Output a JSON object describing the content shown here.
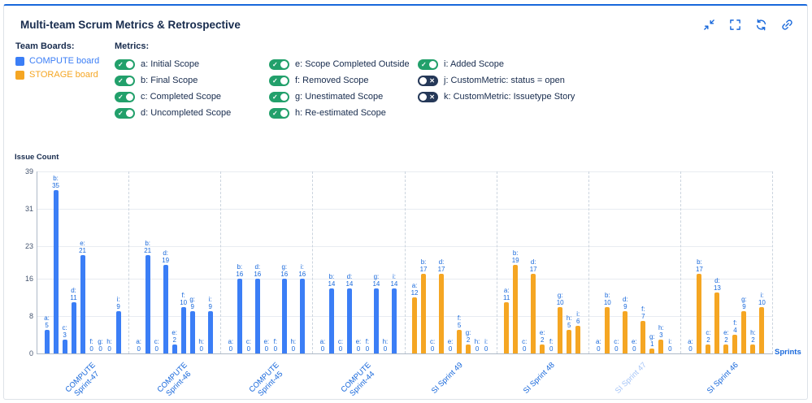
{
  "header": {
    "title": "Multi-team Scrum Metrics & Retrospective",
    "icons": [
      {
        "name": "collapse"
      },
      {
        "name": "fullscreen"
      },
      {
        "name": "refresh"
      },
      {
        "name": "link"
      }
    ]
  },
  "legend": {
    "team_boards_label": "Team Boards:",
    "boards": [
      {
        "label": "COMPUTE board",
        "color": "#3B7EF6"
      },
      {
        "label": "STORAGE board",
        "color": "#F5A623"
      }
    ],
    "metrics_label": "Metrics:",
    "toggle_check": "✓",
    "toggle_x": "✕",
    "metrics": [
      {
        "key": "a",
        "label": "a: Initial Scope",
        "enabled": true
      },
      {
        "key": "b",
        "label": "b: Final Scope",
        "enabled": true
      },
      {
        "key": "c",
        "label": "c: Completed Scope",
        "enabled": true
      },
      {
        "key": "d",
        "label": "d: Uncompleted Scope",
        "enabled": true
      },
      {
        "key": "e",
        "label": "e: Scope Completed Outside",
        "enabled": true
      },
      {
        "key": "f",
        "label": "f: Removed Scope",
        "enabled": true
      },
      {
        "key": "g",
        "label": "g: Unestimated Scope",
        "enabled": true
      },
      {
        "key": "h",
        "label": "h: Re-estimated Scope",
        "enabled": true
      },
      {
        "key": "i",
        "label": "i: Added Scope",
        "enabled": true
      },
      {
        "key": "j",
        "label": "j: CustomMetric: status = open",
        "enabled": false
      },
      {
        "key": "k",
        "label": "k: CustomMetric: Issuetype Story",
        "enabled": false
      }
    ]
  },
  "colors": {
    "accent": "#1868DB",
    "title": "#172B4D",
    "compute": "#3B7EF6",
    "storage": "#F5A623",
    "toggle_on": "#22A06B",
    "toggle_off": "#253858",
    "muted_label": "#A6C5F7"
  },
  "chart_data": {
    "type": "bar",
    "title": "Multi-team Scrum Metrics & Retrospective",
    "ylabel": "Issue Count",
    "xlabel": "Sprints",
    "ylim": [
      0,
      39
    ],
    "yticks": [
      0,
      8,
      16,
      23,
      31,
      39
    ],
    "grid": true,
    "legend_position": "top",
    "metric_keys": [
      "a",
      "b",
      "c",
      "d",
      "e",
      "f",
      "g",
      "h",
      "i"
    ],
    "groups": [
      {
        "label": "COMPUTE\nSprint-47",
        "board": "COMPUTE",
        "values": {
          "a": 5,
          "b": 35,
          "c": 3,
          "d": 11,
          "e": 21,
          "f": 0,
          "g": 0,
          "h": 0,
          "i": 9
        }
      },
      {
        "label": "COMPUTE\nSprint-46",
        "board": "COMPUTE",
        "values": {
          "a": 0,
          "b": 21,
          "c": 0,
          "d": 19,
          "e": 2,
          "f": 10,
          "g": 9,
          "h": 0,
          "i": 9
        }
      },
      {
        "label": "COMPUTE\nSprint-45",
        "board": "COMPUTE",
        "values": {
          "a": 0,
          "b": 16,
          "c": 0,
          "d": 16,
          "e": 0,
          "f": 0,
          "g": 16,
          "h": 0,
          "i": 16
        }
      },
      {
        "label": "COMPUTE\nSprint-44",
        "board": "COMPUTE",
        "values": {
          "a": 0,
          "b": 14,
          "c": 0,
          "d": 14,
          "e": 0,
          "f": 0,
          "g": 14,
          "h": 0,
          "i": 14
        }
      },
      {
        "label": "SI Sprint 49",
        "board": "STORAGE",
        "values": {
          "a": 12,
          "b": 17,
          "c": 0,
          "d": 17,
          "e": 0,
          "f": 5,
          "g": 2,
          "h": 0,
          "i": 0
        }
      },
      {
        "label": "SI Sprint 48",
        "board": "STORAGE",
        "values": {
          "a": 11,
          "b": 19,
          "c": 0,
          "d": 17,
          "e": 2,
          "f": 0,
          "g": 10,
          "h": 5,
          "i": 6
        }
      },
      {
        "label": "SI Sprint 47",
        "board": "STORAGE",
        "muted": true,
        "values": {
          "a": 0,
          "b": 10,
          "c": 0,
          "d": 9,
          "e": 0,
          "f": 7,
          "g": 1,
          "h": 3,
          "i": 0
        }
      },
      {
        "label": "SI Sprint 46",
        "board": "STORAGE",
        "values": {
          "a": 0,
          "b": 17,
          "c": 2,
          "d": 13,
          "e": 2,
          "f": 4,
          "g": 9,
          "h": 2,
          "i": 10
        }
      }
    ]
  }
}
